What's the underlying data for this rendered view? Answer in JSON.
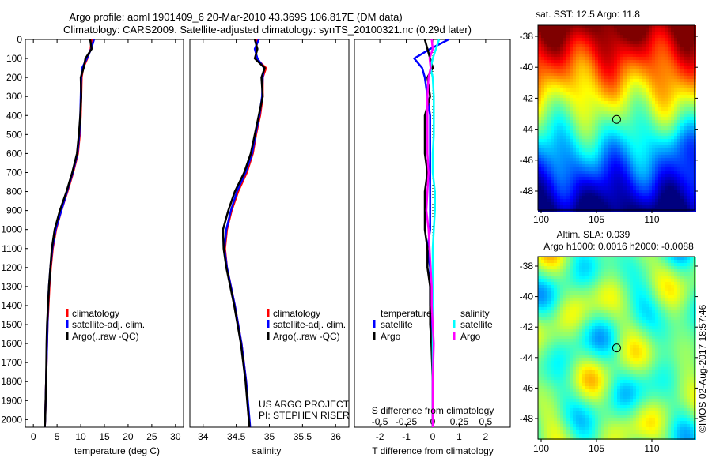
{
  "title": {
    "line1": "Argo profile: aoml 1901409_6 20-Mar-2010 43.369S 106.817E (DM data)",
    "line2": "Climatology: CARS2009. Satellite-adjusted climatology: synTS_20100321.nc (0.29d later)"
  },
  "colors": {
    "climatology": "#ff0000",
    "satellite": "#0000ff",
    "argo": "#000000",
    "sal_satellite": "#00ffff",
    "sal_argo": "#ff00ff"
  },
  "chart_data": [
    {
      "type": "line",
      "name": "temperature",
      "xlabel": "temperature (deg C)",
      "ylim": [
        0,
        2040
      ],
      "xlim": [
        -1.7,
        31.7
      ],
      "xticks": [
        0,
        5,
        10,
        15,
        20,
        25,
        30
      ],
      "yticks": [
        0,
        100,
        200,
        300,
        400,
        500,
        600,
        700,
        800,
        900,
        1000,
        1100,
        1200,
        1300,
        1400,
        1500,
        1600,
        1700,
        1800,
        1900,
        2000
      ],
      "depth": [
        0,
        50,
        100,
        150,
        200,
        300,
        400,
        500,
        600,
        700,
        800,
        900,
        1000,
        1100,
        1200,
        1300,
        1400,
        1500,
        1600,
        1800,
        2000,
        2040
      ],
      "series": [
        {
          "name": "climatology",
          "color": "#ff0000",
          "values": [
            12.3,
            12.1,
            11.4,
            10.5,
            10.2,
            10.1,
            10.0,
            9.8,
            9.4,
            8.4,
            7.2,
            5.9,
            4.8,
            4.1,
            3.7,
            3.4,
            3.2,
            3.0,
            2.9,
            2.7,
            2.5,
            2.4
          ]
        },
        {
          "name": "satellite-adj. clim.",
          "color": "#0000ff",
          "values": [
            12.8,
            12.2,
            11.3,
            10.3,
            10.1,
            10.0,
            9.9,
            9.7,
            9.3,
            8.3,
            7.1,
            5.9,
            4.7,
            4.0,
            3.6,
            3.3,
            3.1,
            3.0,
            2.9,
            2.7,
            2.5,
            2.4
          ]
        },
        {
          "name": "Argo(..raw -QC)",
          "color": "#000000",
          "values": [
            12.0,
            12.3,
            11.0,
            10.6,
            10.0,
            10.1,
            9.9,
            9.6,
            9.2,
            8.2,
            7.0,
            5.6,
            4.5,
            3.9,
            3.6,
            3.3,
            3.1,
            2.9,
            2.8,
            2.7,
            2.5,
            2.4
          ]
        }
      ]
    },
    {
      "type": "line",
      "name": "salinity",
      "xlabel": "salinity",
      "ylim": [
        0,
        2040
      ],
      "xlim": [
        33.8,
        36.2
      ],
      "xticks": [
        "34",
        "34.5",
        "35",
        "35.5",
        "36"
      ],
      "depth": [
        0,
        50,
        100,
        150,
        200,
        300,
        400,
        500,
        600,
        700,
        800,
        900,
        1000,
        1100,
        1200,
        1300,
        1400,
        1500,
        1600,
        1800,
        2000,
        2040
      ],
      "series": [
        {
          "name": "climatology",
          "color": "#ff0000",
          "values": [
            34.82,
            34.8,
            34.8,
            34.95,
            34.9,
            34.9,
            34.86,
            34.8,
            34.75,
            34.66,
            34.53,
            34.43,
            34.36,
            34.33,
            34.36,
            34.42,
            34.48,
            34.53,
            34.58,
            34.65,
            34.69,
            34.7
          ]
        },
        {
          "name": "satellite-adj. clim.",
          "color": "#0000ff",
          "values": [
            34.84,
            34.78,
            34.82,
            34.92,
            34.9,
            34.89,
            34.85,
            34.79,
            34.74,
            34.64,
            34.51,
            34.42,
            34.35,
            34.32,
            34.36,
            34.42,
            34.48,
            34.53,
            34.58,
            34.65,
            34.7,
            34.71
          ]
        },
        {
          "name": "Argo(..raw -QC)",
          "color": "#000000",
          "values": [
            34.78,
            34.82,
            34.78,
            34.93,
            34.88,
            34.9,
            34.84,
            34.78,
            34.72,
            34.62,
            34.48,
            34.38,
            34.3,
            34.31,
            34.35,
            34.41,
            34.47,
            34.52,
            34.57,
            34.64,
            34.69,
            34.7
          ]
        }
      ]
    },
    {
      "type": "line",
      "name": "differences",
      "xlabel": "T difference from climatology",
      "x2label": "S difference from climatology",
      "ylim": [
        0,
        2040
      ],
      "xlim": [
        -2.96,
        2.93
      ],
      "xticks": [
        "-2",
        "-1",
        "0",
        "1",
        "2"
      ],
      "x2ticks": [
        "-0.5",
        "-0.25",
        "0",
        "0.25",
        "0.5"
      ],
      "depth": [
        0,
        50,
        100,
        150,
        200,
        300,
        400,
        500,
        600,
        700,
        800,
        900,
        1000,
        1100,
        1200,
        1300,
        1400,
        1500,
        1600,
        1800,
        2000,
        2040
      ],
      "series": [
        {
          "name": "temperature satellite",
          "color": "#0000ff",
          "values": [
            0.6,
            -0.1,
            -0.7,
            -0.4,
            -0.3,
            -0.2,
            -0.1,
            -0.1,
            -0.1,
            -0.1,
            -0.1,
            -0.1,
            -0.1,
            -0.2,
            -0.1,
            -0.1,
            -0.1,
            -0.05,
            0,
            0,
            0,
            0
          ]
        },
        {
          "name": "temperature Argo",
          "color": "#000000",
          "values": [
            -0.3,
            -0.2,
            -0.1,
            0.0,
            -0.2,
            -0.1,
            -0.3,
            -0.3,
            -0.3,
            -0.2,
            -0.3,
            -0.3,
            -0.3,
            -0.2,
            -0.2,
            -0.1,
            -0.1,
            -0.1,
            -0.05,
            0,
            0,
            0
          ]
        },
        {
          "name": "salinity satellite",
          "color": "#00ffff",
          "values": [
            0.06,
            0.03,
            0.0,
            -0.02,
            0.0,
            0.01,
            0.01,
            0.01,
            0.0,
            0.0,
            0.02,
            0.02,
            0.01,
            0.0,
            0.0,
            0.0,
            0.0,
            0.0,
            0.0,
            0.0,
            0.0,
            0.0
          ]
        },
        {
          "name": "salinity Argo",
          "color": "#ff00ff",
          "values": [
            -0.01,
            0.0,
            -0.03,
            -0.02,
            -0.04,
            -0.05,
            -0.05,
            -0.05,
            -0.05,
            -0.04,
            -0.05,
            -0.06,
            -0.04,
            -0.03,
            -0.02,
            -0.01,
            -0.01,
            0.0,
            0.01,
            0.0,
            0.0,
            0.0
          ]
        }
      ],
      "legend": {
        "temp_header": "temperature",
        "sal_header": "salinity",
        "satellite": "satellite",
        "argo": "Argo"
      }
    },
    {
      "type": "heatmap",
      "name": "sst-map",
      "title": "sat. SST: 12.5 Argo: 11.8",
      "xticks": [
        "100",
        "105",
        "110"
      ],
      "yticks": [
        "-38",
        "-40",
        "-42",
        "-44",
        "-46",
        "-48"
      ],
      "marker": {
        "lon": 106.817,
        "lat": -43.369
      }
    },
    {
      "type": "heatmap",
      "name": "sla-map",
      "title1": "Altim. SLA: 0.039",
      "title2": "Argo h1000: 0.0016 h2000: -0.0088",
      "xticks": [
        "100",
        "105",
        "110"
      ],
      "yticks": [
        "-38",
        "-40",
        "-42",
        "-44",
        "-46",
        "-48"
      ],
      "marker": {
        "lon": 106.817,
        "lat": -43.369
      }
    }
  ],
  "legend": {
    "climatology": "climatology",
    "satellite": "satellite-adj. clim.",
    "argo": "Argo(..raw -QC)"
  },
  "credit": {
    "project": "US ARGO PROJECT",
    "pi": "PI: STEPHEN RISER"
  },
  "watermark": "©IMOS 02-Aug-2017 18:57:46"
}
